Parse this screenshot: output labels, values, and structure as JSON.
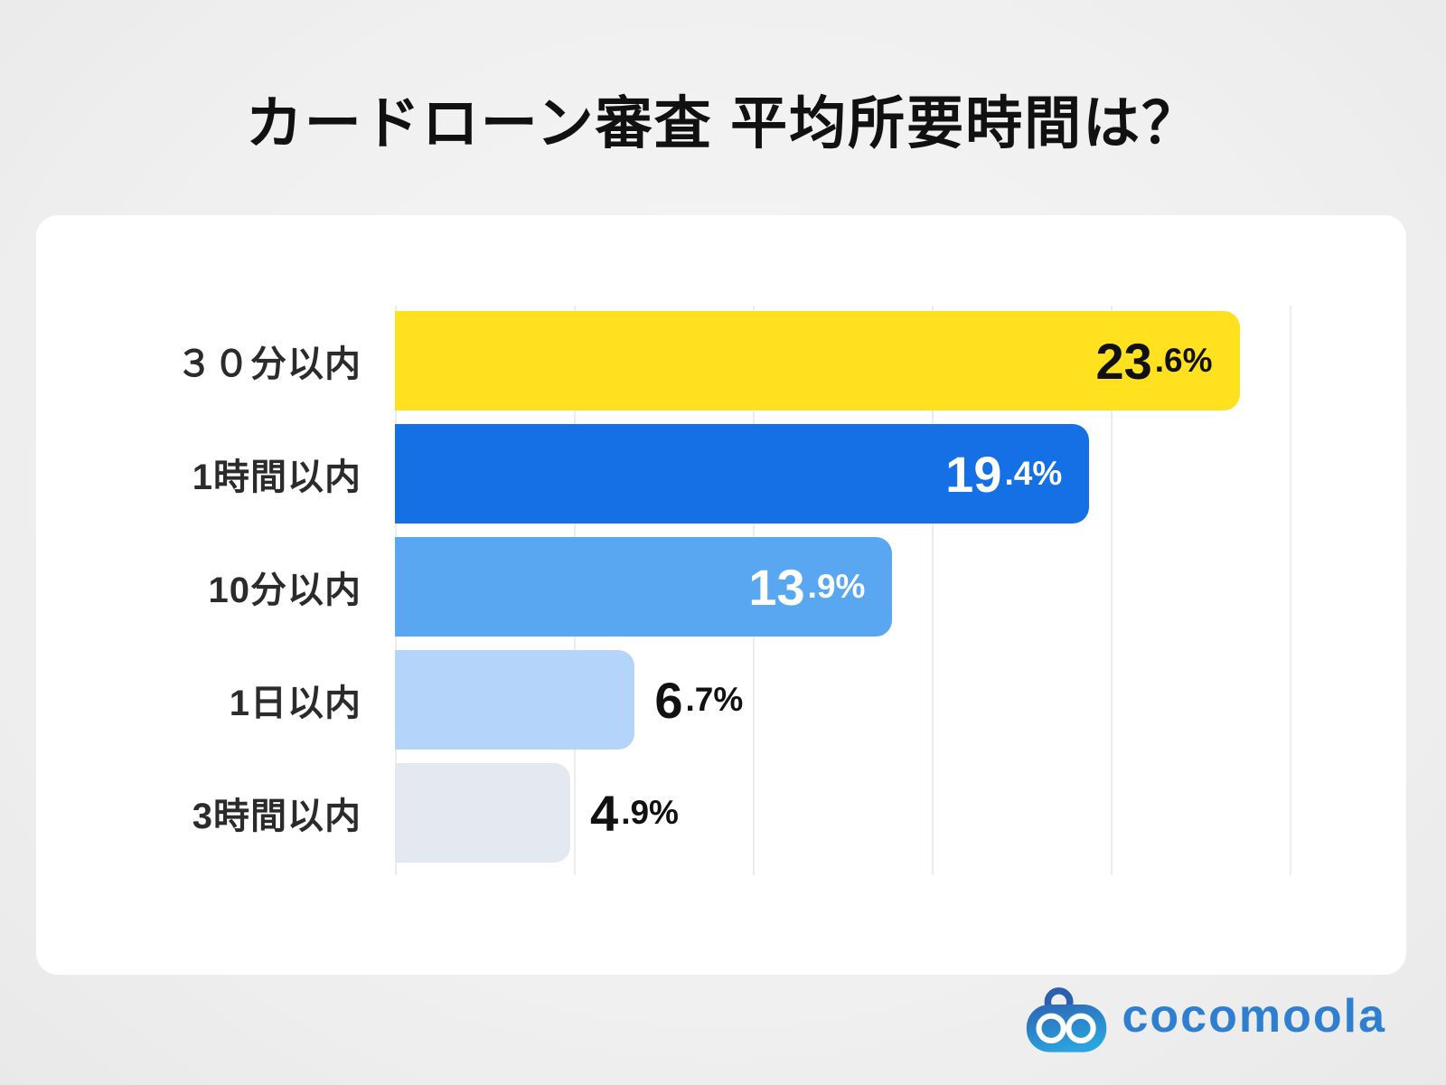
{
  "title": "カードローン審査 平均所要時間は？",
  "chart_data": {
    "type": "bar",
    "orientation": "horizontal",
    "title": "カードローン審査 平均所要時間は？",
    "categories": [
      "３０分以内",
      "1時間以内",
      "10分以内",
      "1日以内",
      "3時間以内"
    ],
    "values": [
      23.6,
      19.4,
      13.9,
      6.7,
      4.9
    ],
    "value_labels": [
      "23.6%",
      "19.4%",
      "13.9%",
      "6.7%",
      "4.9%"
    ],
    "unit": "%",
    "xlim": [
      0,
      25
    ],
    "gridline_step": 5,
    "grid": true,
    "legend": false,
    "bar_colors": [
      "#ffe11f",
      "#1470e4",
      "#58a7f0",
      "#b5d4fa",
      "#e4e8f0"
    ],
    "value_label_inside": [
      true,
      true,
      true,
      false,
      false
    ],
    "value_label_colors": [
      "#111111",
      "#ffffff",
      "#ffffff",
      "#111111",
      "#111111"
    ]
  },
  "logo": {
    "text": "cocomoola",
    "text_color": "#2e7fd0",
    "icon": "cocomoola-purse-icon",
    "icon_gradient_top": "#2c64b4",
    "icon_gradient_bottom": "#2aa3de"
  },
  "colors": {
    "page_bg": "#f0f0f0",
    "card_bg": "#ffffff",
    "title_text": "#111111",
    "label_text": "#2b2b2b",
    "gridline": "#ececec"
  }
}
